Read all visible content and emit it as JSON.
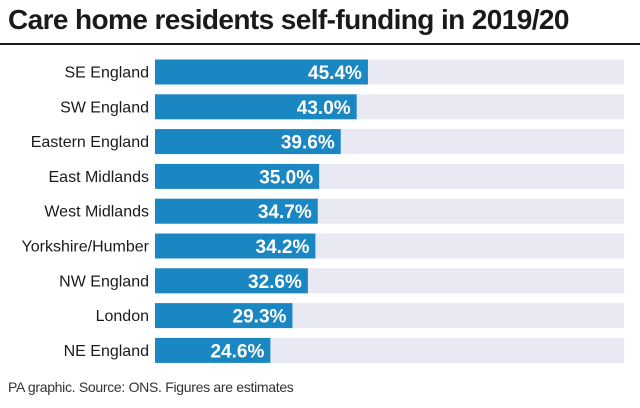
{
  "colors": {
    "bar": "#1a86c2",
    "track": "#e8e9f2",
    "value_text": "#ffffff",
    "label_text": "#1a1a1a"
  },
  "chart_data": {
    "type": "bar",
    "orientation": "horizontal",
    "title": "Care home residents self-funding in 2019/20",
    "categories": [
      "SE England",
      "SW England",
      "Eastern England",
      "East Midlands",
      "West Midlands",
      "Yorkshire/Humber",
      "NW England",
      "London",
      "NE England"
    ],
    "values": [
      45.4,
      43.0,
      39.6,
      35.0,
      34.7,
      34.2,
      32.6,
      29.3,
      24.6
    ],
    "value_labels": [
      "45.4%",
      "43.0%",
      "39.6%",
      "35.0%",
      "34.7%",
      "34.2%",
      "32.6%",
      "29.3%",
      "24.6%"
    ],
    "unit": "%",
    "xlim": [
      0,
      100
    ],
    "xlabel": "",
    "ylabel": "",
    "grid": false,
    "legend": "none"
  },
  "footer": "PA graphic. Source: ONS. Figures are estimates"
}
